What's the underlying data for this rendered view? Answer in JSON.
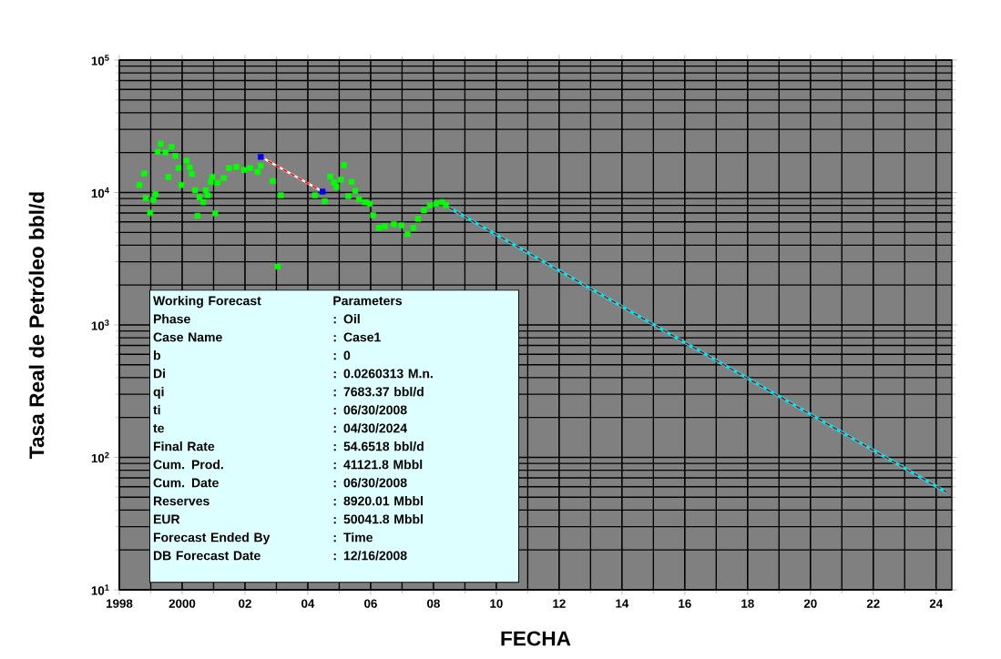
{
  "chart_data": {
    "type": "scatter",
    "xlabel": "FECHA",
    "ylabel": "Tasa Real de Petróleo bbl/d",
    "log": "y",
    "grid": true,
    "xlim": [
      1998,
      2024.5
    ],
    "ylim": [
      10,
      100000
    ],
    "xticks": [
      {
        "value": 1998,
        "label": "1998"
      },
      {
        "value": 2000,
        "label": "2000"
      },
      {
        "value": 2002,
        "label": "02"
      },
      {
        "value": 2004,
        "label": "04"
      },
      {
        "value": 2006,
        "label": "06"
      },
      {
        "value": 2008,
        "label": "08"
      },
      {
        "value": 2010,
        "label": "10"
      },
      {
        "value": 2012,
        "label": "12"
      },
      {
        "value": 2014,
        "label": "14"
      },
      {
        "value": 2016,
        "label": "16"
      },
      {
        "value": 2018,
        "label": "18"
      },
      {
        "value": 2020,
        "label": "20"
      },
      {
        "value": 2022,
        "label": "22"
      },
      {
        "value": 2024,
        "label": "24"
      }
    ],
    "yticks": [
      {
        "value": 10,
        "label": "10$^{1}$"
      },
      {
        "value": 100,
        "label": "10$^{2}$"
      },
      {
        "value": 1000,
        "label": "10$^{3}$"
      },
      {
        "value": 10000,
        "label": "10$^{4}$"
      },
      {
        "value": 100000,
        "label": "10$^{5}$"
      }
    ],
    "series": [
      {
        "type": "scatter",
        "color": "#00ff00",
        "marker": "square",
        "x": [
          1998.64,
          1998.79,
          1998.84,
          1999.08,
          1999.15,
          1998.98,
          1999.22,
          1999.32,
          1999.47,
          1999.66,
          1999.78,
          1999.56,
          1999.97,
          1999.88,
          2000.14,
          2000.24,
          2000.31,
          2000.41,
          2000.55,
          2000.67,
          2000.49,
          2000.75,
          2000.81,
          2001.05,
          2000.91,
          2000.96,
          2001.13,
          2001.32,
          2001.49,
          2001.73,
          2001.97,
          2002.16,
          2002.4,
          2002.5,
          2002.88,
          2003.14,
          2003.04,
          2004.23,
          2004.54,
          2004.71,
          2004.83,
          2004.91,
          2005.05,
          2005.15,
          2005.39,
          2005.51,
          2005.29,
          2005.63,
          2005.82,
          2005.97,
          2006.08,
          2006.26,
          2006.45,
          2006.74,
          2006.98,
          2007.17,
          2007.36,
          2007.51,
          2007.7,
          2007.89,
          2008.09,
          2008.28,
          2008.4
        ],
        "values": [
          11400,
          13900,
          9060,
          8770,
          9740,
          7030,
          20300,
          23300,
          20100,
          22100,
          18900,
          13100,
          11400,
          15300,
          17400,
          15500,
          13800,
          10400,
          9240,
          8450,
          6670,
          10400,
          9540,
          6960,
          12000,
          13100,
          11800,
          12870,
          15300,
          15600,
          14800,
          15300,
          14300,
          15900,
          12200,
          9540,
          2760,
          9540,
          8580,
          13200,
          11900,
          11000,
          12500,
          16100,
          12000,
          10300,
          9390,
          8910,
          8450,
          8230,
          6740,
          5410,
          5550,
          5760,
          5640,
          4860,
          5410,
          6330,
          7330,
          8020,
          8230,
          8450,
          8020
        ]
      },
      {
        "type": "line",
        "color": "#ffffff",
        "line_style": "solid",
        "x": [
          2002.5,
          2004.47
        ],
        "values": [
          18600,
          10160
        ]
      },
      {
        "type": "line",
        "color": "#ff0000",
        "line_style": "dashed",
        "x": [
          2002.5,
          2004.47
        ],
        "values": [
          18600,
          10160
        ]
      },
      {
        "type": "scatter",
        "color": "#0000ff",
        "marker": "square",
        "x": [
          2002.5,
          2004.47
        ],
        "values": [
          18600,
          10160
        ]
      },
      {
        "type": "line",
        "color": "#00e5ee",
        "line_style": "solid",
        "x": [
          2008.5,
          2024.33
        ],
        "values": [
          7683.37,
          54.6518
        ]
      },
      {
        "type": "line",
        "color": "#cc0000",
        "line_style": "dashed",
        "x": [
          2008.5,
          2024.33
        ],
        "values": [
          7683.37,
          54.6518
        ]
      }
    ],
    "annotations": [
      "Working Forecast",
      "Parameters",
      "Phase",
      ": Oil",
      "Case Name",
      ": Case1",
      "b",
      ": 0",
      "Di",
      ": 0.0260313 M.n.",
      "qi",
      ": 7683.37 bbl/d",
      "ti",
      ": 06/30/2008",
      "te",
      ": 04/30/2024",
      "Final Rate",
      ": 54.6518 bbl/d",
      "Cum. Prod.",
      ": 41121.8 Mbbl",
      "Cum. Date",
      ": 06/30/2008",
      "Reserves",
      ": 8920.01 Mbbl",
      "EUR",
      ": 50041.8 Mbbl",
      "Forecast Ended By",
      ": Time",
      "DB Forecast Date",
      ": 12/16/2008"
    ]
  }
}
